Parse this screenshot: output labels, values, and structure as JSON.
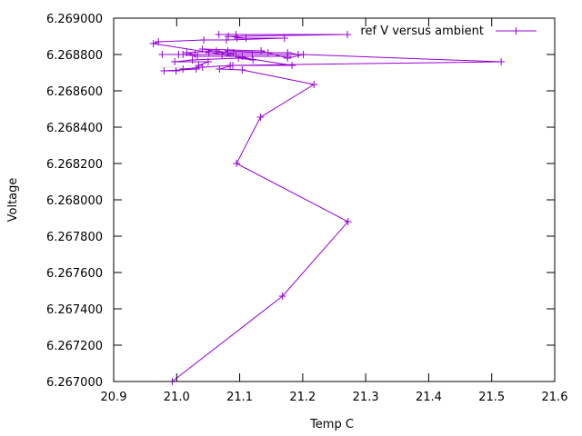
{
  "chart_data": {
    "type": "line",
    "title": "",
    "xlabel": "Temp C",
    "ylabel": "Voltage",
    "xlim": [
      20.9,
      21.6
    ],
    "ylim": [
      6.267,
      6.269
    ],
    "x_ticks": [
      "20.9",
      "21.0",
      "21.1",
      "21.2",
      "21.3",
      "21.4",
      "21.5",
      "21.6"
    ],
    "y_ticks": [
      "6.267000",
      "6.267200",
      "6.267400",
      "6.267600",
      "6.267800",
      "6.268000",
      "6.268200",
      "6.268400",
      "6.268600",
      "6.268800",
      "6.269000"
    ],
    "grid": false,
    "legend_position": "top-right",
    "series": [
      {
        "name": "ref V versus ambient",
        "color": "#9400d3",
        "marker": "plus",
        "x": [
          20.993,
          21.168,
          21.272,
          21.095,
          21.133,
          21.218,
          21.104,
          21.068,
          21.089,
          21.041,
          21.01,
          20.999,
          20.98,
          21.031,
          21.035,
          21.05,
          20.997,
          21.025,
          21.098,
          21.121,
          21.104,
          21.176,
          21.033,
          21.01,
          21.12,
          21.193,
          21.176,
          21.051,
          21.09,
          21.145,
          21.081,
          21.072,
          20.977,
          21.003,
          21.029,
          21.016,
          21.063,
          21.094,
          21.041,
          21.134,
          21.176,
          21.201,
          21.515,
          21.085,
          21.183,
          20.963,
          20.971,
          21.043,
          21.079,
          21.171,
          21.096,
          21.11,
          21.082,
          21.271,
          21.094,
          21.067
        ],
        "y": [
          6.267,
          6.26747,
          6.26788,
          6.2682,
          6.268455,
          6.268635,
          6.268715,
          6.26872,
          6.26874,
          6.26873,
          6.26872,
          6.26871,
          6.26871,
          6.26872,
          6.26874,
          6.26876,
          6.26876,
          6.26877,
          6.26878,
          6.26877,
          6.26879,
          6.26879,
          6.26879,
          6.2688,
          6.2688,
          6.2688,
          6.26881,
          6.26881,
          6.26881,
          6.26881,
          6.26882,
          6.2688,
          6.2688,
          6.2688,
          6.2688,
          6.26881,
          6.26882,
          6.2688,
          6.26883,
          6.26882,
          6.26878,
          6.2688,
          6.26876,
          6.26874,
          6.26874,
          6.26886,
          6.26887,
          6.26888,
          6.26888,
          6.26889,
          6.26889,
          6.26889,
          6.2689,
          6.26891,
          6.26891,
          6.26891
        ]
      }
    ]
  }
}
